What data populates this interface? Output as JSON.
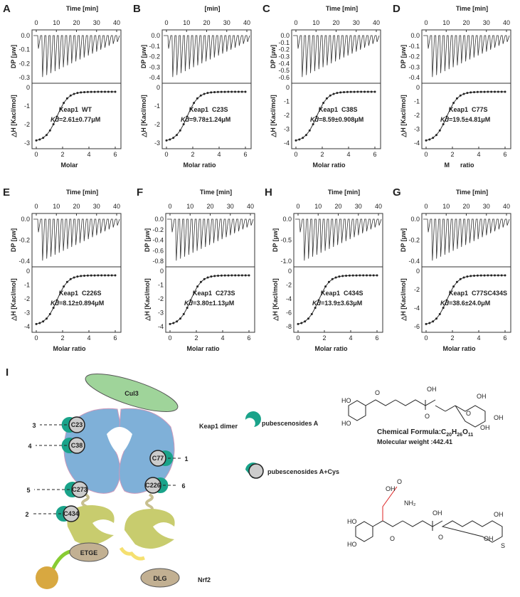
{
  "panels": [
    {
      "letter": "A",
      "top_axis": "Time [min]",
      "time_ticks": [
        0,
        10,
        20,
        30,
        40
      ],
      "dp_label": "DP [μw]",
      "dp_ticks": [
        "0.0",
        "-0.1",
        "-0.2",
        "-0.3"
      ],
      "dh_label": "△H [Kacl/mol]",
      "dh_ticks": [
        "0",
        "-1",
        "-2",
        "-3"
      ],
      "x_ticks": [
        0,
        2,
        4,
        6
      ],
      "x_label": "Molar",
      "protein": "Keap1  WT",
      "kd_symbol": "Kd",
      "kd": "=2.61±0.77μM"
    },
    {
      "letter": "B",
      "top_axis": "[min]",
      "time_ticks": [
        0,
        10,
        20,
        30,
        40
      ],
      "dp_label": "DP [μw]",
      "dp_ticks": [
        "0.0",
        "-0.1",
        "-0.2",
        "-0.3",
        "-0.4"
      ],
      "dh_label": "△H [Kacl/mol]",
      "dh_ticks": [
        "0",
        "-1",
        "-2",
        "-3"
      ],
      "x_ticks": [
        0,
        2,
        4,
        6
      ],
      "x_label": "Molar ratio",
      "protein": "Keap1  C23S",
      "kd_symbol": "Kd",
      "kd": "=9.78±1.24μM"
    },
    {
      "letter": "C",
      "top_axis": "Time [min]",
      "time_ticks": [
        0,
        10,
        20,
        30,
        40
      ],
      "dp_label": "DP [μw]",
      "dp_ticks": [
        "0.0",
        "-0.1",
        "-0.2",
        "-0.3",
        "-0.4",
        "-0.5",
        "-0.6"
      ],
      "dh_label": "△H [Kacl/mol]",
      "dh_ticks": [
        "0",
        "-1",
        "-2",
        "-3",
        "-4"
      ],
      "x_ticks": [
        0,
        2,
        4,
        6
      ],
      "x_label": "Molar ratio",
      "protein": "Keap1  C38S",
      "kd_symbol": "Kd",
      "kd": "=8.59±0.908μM"
    },
    {
      "letter": "D",
      "top_axis": "Time [min]",
      "time_ticks": [
        0,
        10,
        20,
        30,
        40
      ],
      "dp_label": "DP [μw]",
      "dp_ticks": [
        "0.0",
        "-0.1",
        "-0.2",
        "-0.3",
        "-0.4"
      ],
      "dh_label": "△H [Kacl/mol]",
      "dh_ticks": [
        "0",
        "-1",
        "-2",
        "-3",
        "-4"
      ],
      "x_ticks": [
        0,
        2,
        4,
        6
      ],
      "x_label": "M      ratio",
      "protein": "Keap1  C77S",
      "kd_symbol": "Kd",
      "kd": "=19.5±4.81μM"
    },
    {
      "letter": "E",
      "top_axis": "Time [min]",
      "time_ticks": [
        0,
        10,
        20,
        30,
        40
      ],
      "dp_label": "DP [μw]",
      "dp_ticks": [
        "0.0",
        "-0.2",
        "-0.4"
      ],
      "dh_label": "△H [Kacl/mol]",
      "dh_ticks": [
        "0",
        "-1",
        "-2",
        "-3",
        "-4"
      ],
      "x_ticks": [
        0,
        2,
        4,
        6
      ],
      "x_label": "Molar ratio",
      "protein": "Keap1  C226S",
      "kd_symbol": "Kd",
      "kd": "=8.12±0.894μM"
    },
    {
      "letter": "F",
      "top_axis": "Time [min]",
      "time_ticks": [
        0,
        10,
        20,
        30,
        40
      ],
      "dp_label": "DP [μw]",
      "dp_ticks": [
        "0.0",
        "-0.2",
        "-0.4",
        "-0.6",
        "-0.8"
      ],
      "dh_label": "△H [Kacl/mol]",
      "dh_ticks": [
        "0",
        "-1",
        "-2",
        "-3",
        "-4"
      ],
      "x_ticks": [
        0,
        2,
        4,
        6
      ],
      "x_label": "Molar ratio",
      "protein": "Keap1  C273S",
      "kd_symbol": "Kd",
      "kd": "=3.80±1.13μM"
    },
    {
      "letter": "H",
      "top_axis": "Time [min]",
      "time_ticks": [
        0,
        10,
        20,
        30,
        40
      ],
      "dp_label": "DP [μw]",
      "dp_ticks": [
        "0.0",
        "-0.5",
        "-1.0"
      ],
      "dh_label": "△H [Kacl/mol]",
      "dh_ticks": [
        "0",
        "-2",
        "-4",
        "-6",
        "-8"
      ],
      "x_ticks": [
        0,
        2,
        4,
        6
      ],
      "x_label": "Molar ratio",
      "protein": "Keap1  C434S",
      "kd_symbol": "Kd",
      "kd": "=13.9±3.63μM"
    },
    {
      "letter": "G",
      "top_axis": "Time [min]",
      "time_ticks": [
        0,
        10,
        20,
        30,
        40
      ],
      "dp_label": "DP [μw]",
      "dp_ticks": [
        "0.0",
        "-0.2",
        "-0.4"
      ],
      "dh_label": "△H [Kacl/mol]",
      "dh_ticks": [
        "0",
        "-2",
        "-4",
        "-6"
      ],
      "x_ticks": [
        0,
        2,
        4,
        6
      ],
      "x_label": "Molar ratio",
      "protein": "Keap1  C77SC434S",
      "kd_symbol": "Kd",
      "kd": "=38.6±24.0μM"
    }
  ],
  "diagram": {
    "letter": "I",
    "cul3": "Cul3",
    "keap1": "Keap1 dimer",
    "nrf2": "Nrf2",
    "etge": "ETGE",
    "dlg": "DLG",
    "sites": [
      "C23",
      "C38",
      "C77",
      "C273",
      "C226",
      "C434"
    ],
    "site_numbers": [
      "3",
      "4",
      "1",
      "5",
      "6",
      "2"
    ],
    "legend": [
      "pubescenosides A",
      "pubescenosides A+Cys"
    ],
    "formula": [
      "Chemical Formula:C",
      "20",
      "H",
      "26",
      "O",
      "11"
    ],
    "weight": "Molecular weight :442.41",
    "atoms_a": [
      "HO",
      "HO",
      "O",
      "O",
      "OH",
      "O",
      "OH",
      "OH",
      "OH"
    ],
    "atoms_b": [
      "HO",
      "HO",
      "O",
      "OH",
      "O",
      "OH",
      "OH",
      "S",
      "OH",
      "O",
      "NH₂"
    ]
  }
}
